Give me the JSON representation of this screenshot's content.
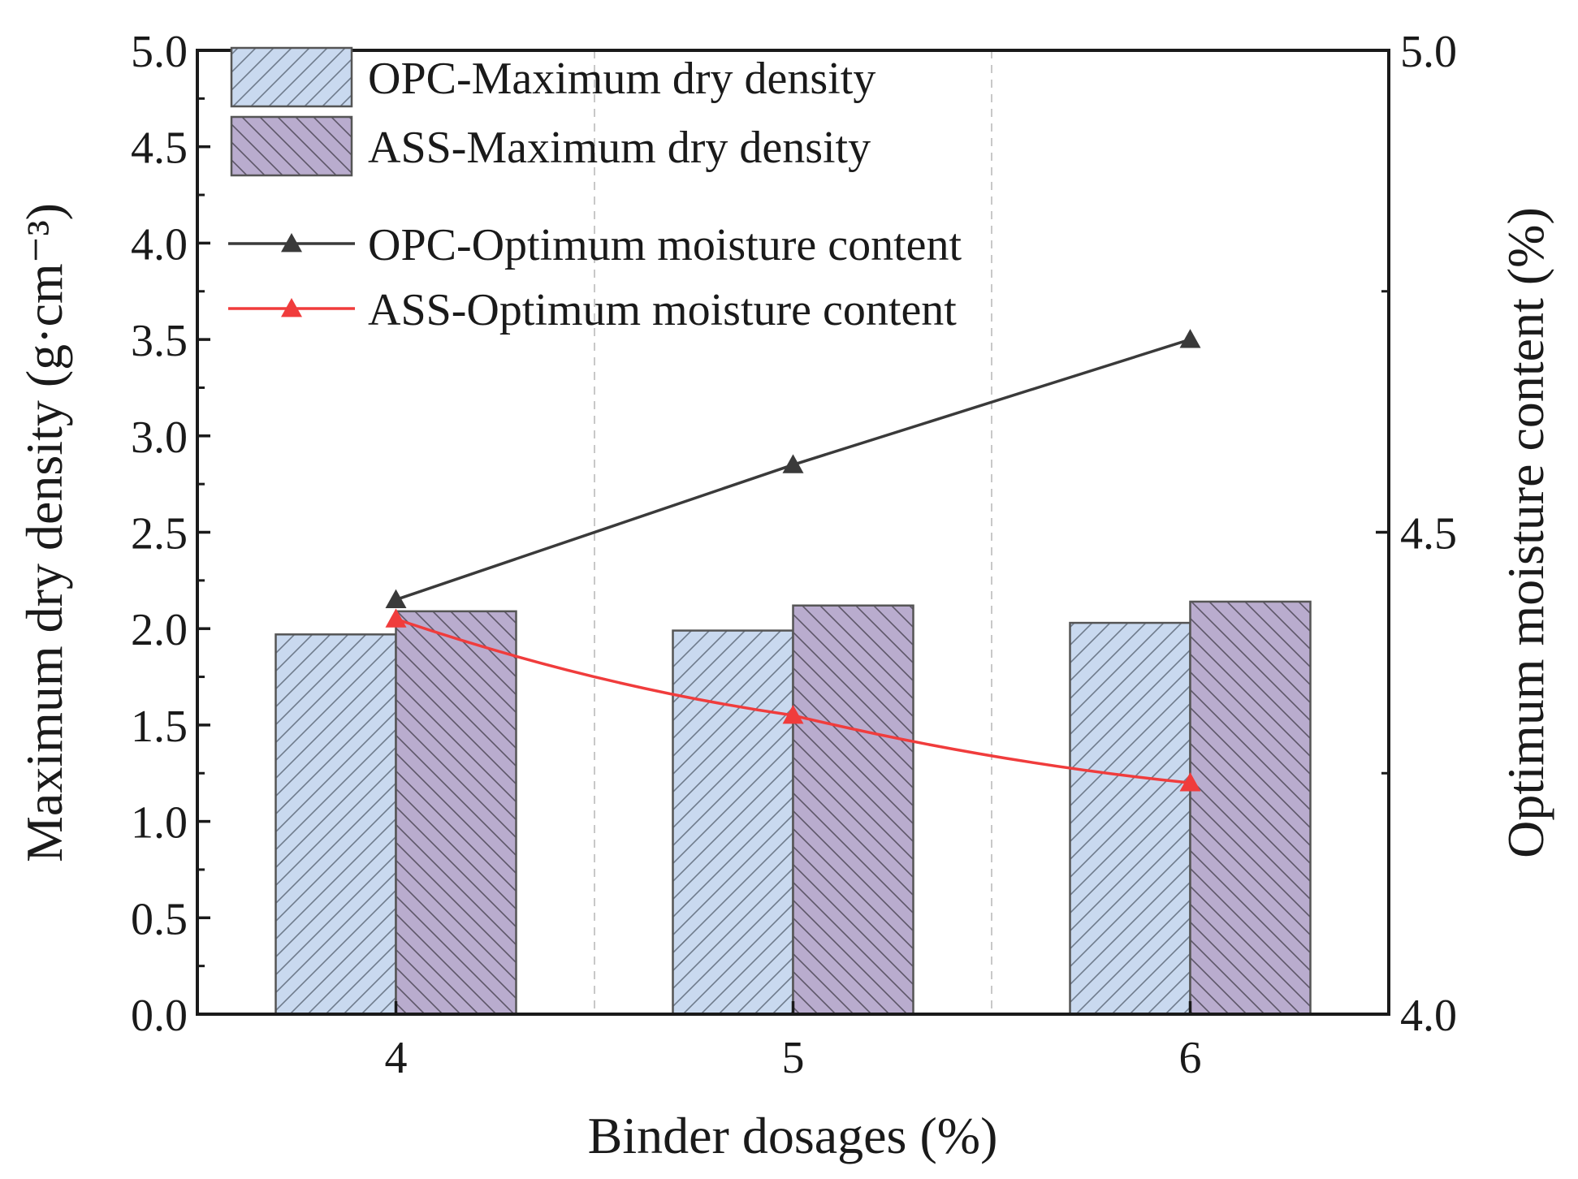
{
  "chart_data": {
    "type": "bar",
    "xlabel": "Binder dosages (%)",
    "ylabel": "Maximum dry density (g·cm⁻³)",
    "ylabel_right": "Optimum moisture content (%)",
    "categories": [
      "4",
      "5",
      "6"
    ],
    "ylim": [
      0.0,
      5.0
    ],
    "ylim_right": [
      4.0,
      5.0
    ],
    "y_ticks": [
      "0.0",
      "0.5",
      "1.0",
      "1.5",
      "2.0",
      "2.5",
      "3.0",
      "3.5",
      "4.0",
      "4.5",
      "5.0"
    ],
    "y_right_ticks": [
      "4.0",
      "4.5",
      "5.0"
    ],
    "bar_series": [
      {
        "name": "OPC-Maximum dry density",
        "values": [
          1.97,
          1.99,
          2.03
        ],
        "fill": "#c9d9ef",
        "hatch": "forward"
      },
      {
        "name": "ASS-Maximum dry density",
        "values": [
          2.09,
          2.12,
          2.14
        ],
        "fill": "#b9acce",
        "hatch": "backward"
      }
    ],
    "line_series": [
      {
        "name": "OPC-Optimum moisture content",
        "values": [
          4.43,
          4.57,
          4.7
        ],
        "color": "#3a3a3a",
        "marker": "triangle"
      },
      {
        "name": "ASS-Optimum moisture content",
        "values": [
          4.41,
          4.31,
          4.24
        ],
        "color": "#f03c3c",
        "marker": "triangle"
      }
    ],
    "legend": {
      "position": "top-left",
      "entries": [
        "OPC-Maximum dry density",
        "ASS-Maximum dry density",
        "OPC-Optimum moisture content",
        "ASS-Optimum moisture content"
      ]
    },
    "grid": "vertical dashed separators between categories"
  }
}
